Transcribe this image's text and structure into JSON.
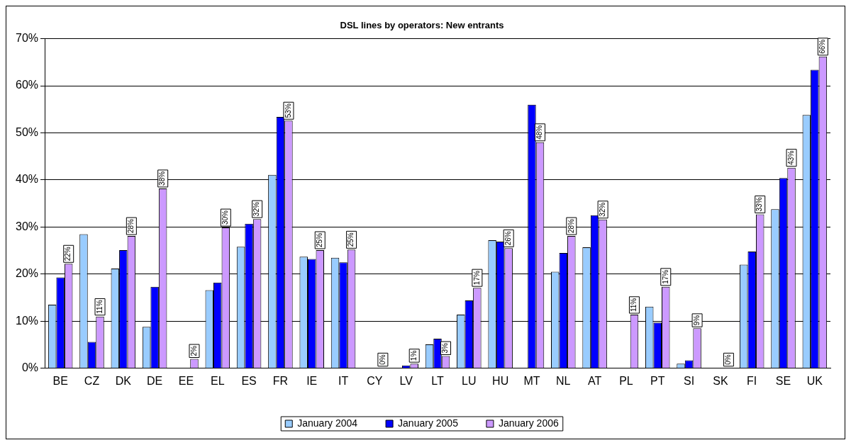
{
  "chart_data": {
    "type": "bar",
    "title": "DSL lines by operators: New entrants",
    "categories": [
      "BE",
      "CZ",
      "DK",
      "DE",
      "EE",
      "EL",
      "ES",
      "FR",
      "IE",
      "IT",
      "CY",
      "LV",
      "LT",
      "LU",
      "HU",
      "MT",
      "NL",
      "AT",
      "PL",
      "PT",
      "SI",
      "SK",
      "FI",
      "SE",
      "UK"
    ],
    "series": [
      {
        "name": "January 2004",
        "color": "#99ccff",
        "values": [
          13.5,
          28.5,
          21.2,
          8.8,
          null,
          16.6,
          25.8,
          41.1,
          23.7,
          23.5,
          null,
          null,
          5.1,
          11.4,
          27.2,
          null,
          20.5,
          25.7,
          null,
          13.1,
          1.0,
          null,
          22.0,
          33.8,
          53.8
        ]
      },
      {
        "name": "January 2005",
        "color": "#0000ff",
        "values": [
          19.3,
          5.6,
          25.1,
          17.3,
          null,
          18.2,
          30.7,
          53.4,
          23.2,
          22.5,
          null,
          0.6,
          6.3,
          14.4,
          26.9,
          56.0,
          24.5,
          32.5,
          null,
          9.7,
          1.7,
          null,
          24.8,
          40.4,
          63.4
        ]
      },
      {
        "name": "January 2006",
        "color": "#cc99ff",
        "values": [
          22.2,
          11.0,
          28.1,
          38.2,
          2.0,
          29.9,
          31.7,
          52.6,
          25.1,
          25.2,
          0,
          1.0,
          2.6,
          17.1,
          25.5,
          48.0,
          28.1,
          31.6,
          11.4,
          17.3,
          8.5,
          0,
          32.7,
          42.6,
          66.2
        ],
        "value_labels": [
          "22%",
          "11%",
          "28%",
          "38%",
          "2%",
          "30%",
          "32%",
          "53%",
          "25%",
          "25%",
          "0%",
          "1%",
          "3%",
          "17%",
          "26%",
          "48%",
          "28%",
          "32%",
          "11%",
          "17%",
          "9%",
          "0%",
          "33%",
          "43%",
          "66%"
        ]
      }
    ],
    "ylim": [
      0,
      70
    ],
    "yticks": [
      {
        "value": 0,
        "label": "0%"
      },
      {
        "value": 10,
        "label": "10%"
      },
      {
        "value": 20,
        "label": "20%"
      },
      {
        "value": 30,
        "label": "30%"
      },
      {
        "value": 40,
        "label": "40%"
      },
      {
        "value": 50,
        "label": "50%"
      },
      {
        "value": 60,
        "label": "60%"
      },
      {
        "value": 70,
        "label": "70%"
      }
    ],
    "grid": "y",
    "legend": "bottom"
  }
}
